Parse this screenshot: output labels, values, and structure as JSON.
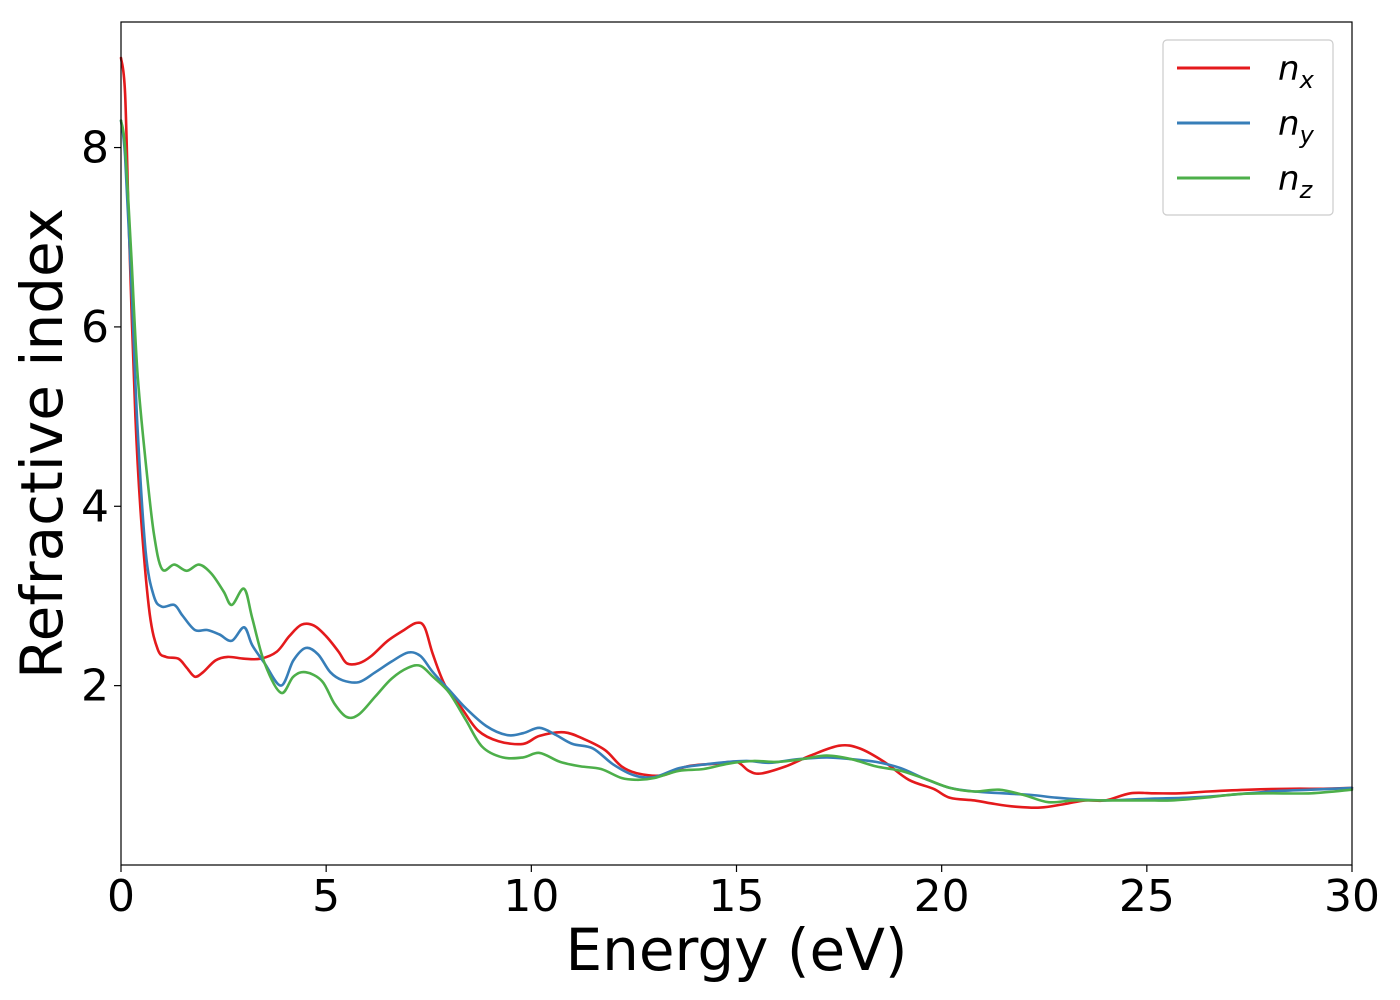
{
  "chart_data": {
    "type": "line",
    "xlabel": "Energy (eV)",
    "ylabel": "Refractive index",
    "xlim": [
      0,
      30
    ],
    "ylim": [
      0,
      9.4
    ],
    "xticks": [
      0,
      5,
      10,
      15,
      20,
      25,
      30
    ],
    "yticks": [
      2,
      4,
      6,
      8
    ],
    "xtick_labels": [
      "0",
      "5",
      "10",
      "15",
      "20",
      "25",
      "30"
    ],
    "ytick_labels": [
      "2",
      "4",
      "6",
      "8"
    ],
    "grid": false,
    "legend_position": "top-right",
    "series": [
      {
        "name": "n_x",
        "label_base": "n",
        "label_sub": "x",
        "color": "#e41a1c",
        "points": [
          [
            0,
            9.0
          ],
          [
            0.1,
            8.6
          ],
          [
            0.2,
            7.0
          ],
          [
            0.35,
            5.0
          ],
          [
            0.5,
            3.8
          ],
          [
            0.7,
            2.8
          ],
          [
            0.9,
            2.4
          ],
          [
            1.1,
            2.32
          ],
          [
            1.4,
            2.3
          ],
          [
            1.6,
            2.2
          ],
          [
            1.8,
            2.1
          ],
          [
            2.0,
            2.15
          ],
          [
            2.3,
            2.28
          ],
          [
            2.6,
            2.32
          ],
          [
            3.0,
            2.3
          ],
          [
            3.4,
            2.3
          ],
          [
            3.8,
            2.38
          ],
          [
            4.1,
            2.55
          ],
          [
            4.4,
            2.68
          ],
          [
            4.7,
            2.67
          ],
          [
            5.0,
            2.55
          ],
          [
            5.3,
            2.38
          ],
          [
            5.5,
            2.25
          ],
          [
            5.8,
            2.25
          ],
          [
            6.1,
            2.33
          ],
          [
            6.5,
            2.5
          ],
          [
            6.9,
            2.62
          ],
          [
            7.2,
            2.7
          ],
          [
            7.4,
            2.65
          ],
          [
            7.6,
            2.35
          ],
          [
            7.9,
            2.0
          ],
          [
            8.3,
            1.75
          ],
          [
            8.7,
            1.5
          ],
          [
            9.2,
            1.38
          ],
          [
            9.8,
            1.35
          ],
          [
            10.2,
            1.44
          ],
          [
            10.8,
            1.48
          ],
          [
            11.3,
            1.4
          ],
          [
            11.8,
            1.28
          ],
          [
            12.2,
            1.1
          ],
          [
            12.6,
            1.02
          ],
          [
            13.2,
            1.0
          ],
          [
            13.8,
            1.1
          ],
          [
            14.5,
            1.13
          ],
          [
            15.0,
            1.15
          ],
          [
            15.3,
            1.05
          ],
          [
            15.6,
            1.02
          ],
          [
            16.2,
            1.1
          ],
          [
            16.8,
            1.22
          ],
          [
            17.5,
            1.33
          ],
          [
            18.0,
            1.3
          ],
          [
            18.6,
            1.15
          ],
          [
            19.2,
            0.95
          ],
          [
            19.8,
            0.85
          ],
          [
            20.2,
            0.75
          ],
          [
            20.8,
            0.72
          ],
          [
            21.3,
            0.68
          ],
          [
            21.8,
            0.65
          ],
          [
            22.4,
            0.64
          ],
          [
            23.0,
            0.68
          ],
          [
            23.5,
            0.72
          ],
          [
            24.0,
            0.72
          ],
          [
            24.6,
            0.8
          ],
          [
            25.2,
            0.8
          ],
          [
            25.8,
            0.8
          ],
          [
            26.5,
            0.82
          ],
          [
            27.5,
            0.84
          ],
          [
            28.5,
            0.85
          ],
          [
            29.3,
            0.85
          ],
          [
            30.0,
            0.86
          ]
        ]
      },
      {
        "name": "n_y",
        "label_base": "n",
        "label_sub": "y",
        "color": "#377eb8",
        "points": [
          [
            0,
            8.3
          ],
          [
            0.1,
            7.9
          ],
          [
            0.25,
            6.5
          ],
          [
            0.4,
            4.9
          ],
          [
            0.6,
            3.5
          ],
          [
            0.8,
            3.0
          ],
          [
            1.0,
            2.88
          ],
          [
            1.3,
            2.9
          ],
          [
            1.5,
            2.78
          ],
          [
            1.8,
            2.62
          ],
          [
            2.1,
            2.62
          ],
          [
            2.4,
            2.57
          ],
          [
            2.7,
            2.5
          ],
          [
            3.0,
            2.65
          ],
          [
            3.2,
            2.45
          ],
          [
            3.5,
            2.25
          ],
          [
            3.9,
            2.0
          ],
          [
            4.2,
            2.28
          ],
          [
            4.5,
            2.42
          ],
          [
            4.8,
            2.35
          ],
          [
            5.1,
            2.15
          ],
          [
            5.4,
            2.06
          ],
          [
            5.8,
            2.04
          ],
          [
            6.2,
            2.15
          ],
          [
            6.6,
            2.27
          ],
          [
            7.0,
            2.37
          ],
          [
            7.3,
            2.33
          ],
          [
            7.6,
            2.15
          ],
          [
            8.0,
            1.95
          ],
          [
            8.4,
            1.75
          ],
          [
            8.9,
            1.55
          ],
          [
            9.4,
            1.45
          ],
          [
            9.8,
            1.47
          ],
          [
            10.2,
            1.53
          ],
          [
            10.6,
            1.45
          ],
          [
            11.0,
            1.35
          ],
          [
            11.5,
            1.3
          ],
          [
            12.0,
            1.12
          ],
          [
            12.5,
            1.0
          ],
          [
            13.0,
            0.98
          ],
          [
            13.6,
            1.08
          ],
          [
            14.2,
            1.12
          ],
          [
            14.8,
            1.15
          ],
          [
            15.3,
            1.16
          ],
          [
            15.8,
            1.14
          ],
          [
            16.5,
            1.18
          ],
          [
            17.2,
            1.2
          ],
          [
            17.8,
            1.18
          ],
          [
            18.4,
            1.15
          ],
          [
            19.0,
            1.08
          ],
          [
            19.6,
            0.96
          ],
          [
            20.2,
            0.86
          ],
          [
            20.8,
            0.82
          ],
          [
            21.5,
            0.8
          ],
          [
            22.2,
            0.78
          ],
          [
            22.8,
            0.75
          ],
          [
            23.4,
            0.73
          ],
          [
            24.0,
            0.72
          ],
          [
            24.6,
            0.73
          ],
          [
            25.2,
            0.74
          ],
          [
            26.0,
            0.75
          ],
          [
            27.0,
            0.78
          ],
          [
            28.0,
            0.82
          ],
          [
            29.0,
            0.84
          ],
          [
            30.0,
            0.86
          ]
        ]
      },
      {
        "name": "n_z",
        "label_base": "n",
        "label_sub": "z",
        "color": "#4daf4a",
        "points": [
          [
            0,
            8.3
          ],
          [
            0.1,
            8.0
          ],
          [
            0.25,
            6.8
          ],
          [
            0.4,
            5.5
          ],
          [
            0.6,
            4.5
          ],
          [
            0.8,
            3.7
          ],
          [
            1.0,
            3.3
          ],
          [
            1.3,
            3.35
          ],
          [
            1.6,
            3.28
          ],
          [
            1.9,
            3.35
          ],
          [
            2.2,
            3.25
          ],
          [
            2.5,
            3.05
          ],
          [
            2.7,
            2.9
          ],
          [
            3.0,
            3.08
          ],
          [
            3.2,
            2.75
          ],
          [
            3.5,
            2.25
          ],
          [
            3.9,
            1.92
          ],
          [
            4.2,
            2.1
          ],
          [
            4.5,
            2.15
          ],
          [
            4.9,
            2.05
          ],
          [
            5.2,
            1.8
          ],
          [
            5.5,
            1.65
          ],
          [
            5.8,
            1.68
          ],
          [
            6.2,
            1.88
          ],
          [
            6.6,
            2.08
          ],
          [
            7.0,
            2.2
          ],
          [
            7.3,
            2.22
          ],
          [
            7.6,
            2.1
          ],
          [
            8.0,
            1.92
          ],
          [
            8.4,
            1.62
          ],
          [
            8.8,
            1.32
          ],
          [
            9.3,
            1.2
          ],
          [
            9.8,
            1.2
          ],
          [
            10.2,
            1.25
          ],
          [
            10.7,
            1.15
          ],
          [
            11.2,
            1.1
          ],
          [
            11.7,
            1.07
          ],
          [
            12.2,
            0.97
          ],
          [
            12.6,
            0.95
          ],
          [
            13.0,
            0.97
          ],
          [
            13.6,
            1.05
          ],
          [
            14.2,
            1.07
          ],
          [
            14.8,
            1.13
          ],
          [
            15.4,
            1.16
          ],
          [
            16.0,
            1.15
          ],
          [
            16.6,
            1.18
          ],
          [
            17.2,
            1.22
          ],
          [
            17.8,
            1.18
          ],
          [
            18.4,
            1.1
          ],
          [
            19.0,
            1.05
          ],
          [
            19.6,
            0.96
          ],
          [
            20.2,
            0.86
          ],
          [
            20.8,
            0.82
          ],
          [
            21.4,
            0.84
          ],
          [
            22.0,
            0.78
          ],
          [
            22.6,
            0.7
          ],
          [
            23.2,
            0.72
          ],
          [
            23.8,
            0.72
          ],
          [
            24.4,
            0.72
          ],
          [
            25.0,
            0.72
          ],
          [
            25.6,
            0.72
          ],
          [
            26.4,
            0.75
          ],
          [
            27.2,
            0.79
          ],
          [
            28.0,
            0.8
          ],
          [
            29.0,
            0.8
          ],
          [
            30.0,
            0.84
          ]
        ]
      }
    ]
  }
}
